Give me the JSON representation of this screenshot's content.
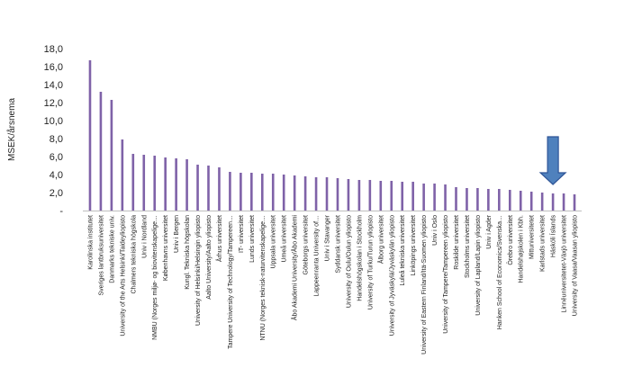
{
  "chart_data": {
    "type": "bar",
    "title": "",
    "xlabel": "",
    "ylabel": "MSEK/årsnema",
    "ylim": [
      0,
      18
    ],
    "yticks": [
      0,
      2,
      4,
      6,
      8,
      10,
      12,
      14,
      16,
      18
    ],
    "ytick_labels": [
      "-",
      "2,0",
      "4,0",
      "6,0",
      "8,0",
      "10,0",
      "12,0",
      "14,0",
      "16,0",
      "18,0"
    ],
    "grid": false,
    "legend": "none",
    "bar_color": "#7F62A8",
    "arrow_color": "#4F81BD",
    "categories": [
      "Karolinska institutet",
      "Sveriges lantbruksuniversitet",
      "Danmarks tekniske univ.",
      "University of the Arts Helsinki/Taideyliopisto",
      "Chalmers tekniska högskola",
      "Univ i Nordland",
      "NMBU (Norges miljø- og biovitenskapelige…",
      "Københavns universitet",
      "Univ i Bergen",
      "Kungl. Tekniska högskolan",
      "University of Helsinki/Helsingin yliopisto",
      "Aalto University/Aalto yliopisto",
      "Århus universitet",
      "Tampere University of Technology/Tampereen…",
      "IT- universitet",
      "Lunds universitet",
      "NTNU (Norges teknisk-naturvitenskapelige…",
      "Uppsala universitet",
      "Umeå universitet",
      "Åbo Akademi University/Åbo Akademi",
      "Göteborgs universitet",
      "Lappeenranta University of…",
      "Univ i Stavanger",
      "Syddansk universitet",
      "University of Oulu/Oulun yliopisto",
      "Handelshögskolan i Stockholm",
      "University of Turku/Turun yliopisto",
      "Ålborg universitet",
      "University of Jyväskylä/Jyväskylän yliopisto",
      "Luleå tekniska universitet",
      "Linköpings universitet",
      "University of Eastern Finland/Itä-Suomen yliopisto",
      "Univ i Oslo",
      "University of Tampere/Tampereen yliopisto",
      "Roskilde universitet",
      "Stockholms universitet",
      "University of Lapland/Lapin yliopisto",
      "Univ i Agder",
      "Hanken School of Economics/Svenska…",
      "Örebro universitet",
      "Handelshøjskolen i Kbh.",
      "Mittuniversitetet",
      "Karlstads universitet",
      "Háskóli Íslands",
      "Linnéuniversitetet-Växjö universitet",
      "University of Vaasa/Vaasan yliopisto"
    ],
    "values": [
      16.7,
      13.2,
      12.3,
      7.9,
      6.3,
      6.2,
      6.1,
      5.9,
      5.8,
      5.7,
      5.1,
      5.0,
      4.8,
      4.3,
      4.2,
      4.2,
      4.1,
      4.1,
      4.0,
      3.9,
      3.8,
      3.7,
      3.7,
      3.6,
      3.5,
      3.4,
      3.4,
      3.3,
      3.3,
      3.2,
      3.2,
      3.0,
      3.0,
      2.9,
      2.6,
      2.5,
      2.5,
      2.4,
      2.4,
      2.3,
      2.2,
      2.1,
      2.0,
      1.9,
      1.9,
      1.8
    ],
    "annotations": [
      {
        "type": "arrow-down",
        "category_index": 43
      }
    ]
  }
}
